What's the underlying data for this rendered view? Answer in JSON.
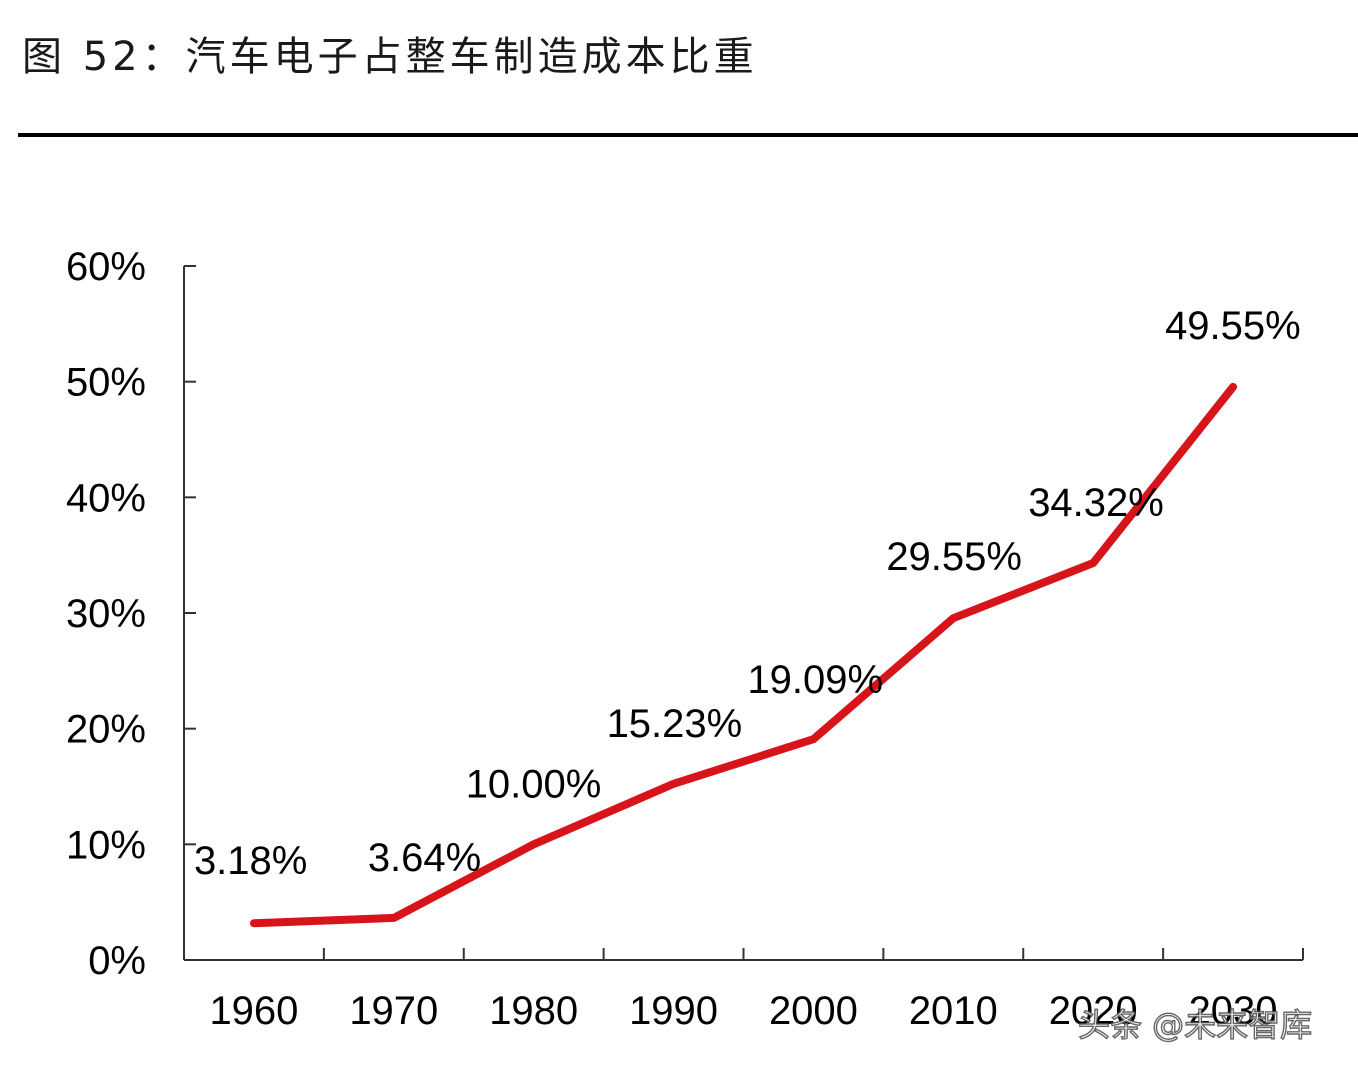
{
  "figure": {
    "title": "图 52：汽车电子占整车制造成本比重"
  },
  "chart_data": {
    "type": "line",
    "title": "",
    "xlabel": "",
    "ylabel": "",
    "categories": [
      "1960",
      "1970",
      "1980",
      "1990",
      "2000",
      "2010",
      "2020",
      "2030"
    ],
    "series": [
      {
        "name": "汽车电子占整车制造成本比重",
        "values": [
          3.18,
          3.64,
          10.0,
          15.23,
          19.09,
          29.55,
          34.32,
          49.55
        ],
        "labels": [
          "3.18%",
          "3.64%",
          "10.00%",
          "15.23%",
          "19.09%",
          "29.55%",
          "34.32%",
          "49.55%"
        ],
        "color": "#d7141a"
      }
    ],
    "yticks": [
      "0%",
      "10%",
      "20%",
      "30%",
      "40%",
      "50%",
      "60%"
    ],
    "ylim": [
      0,
      60
    ],
    "grid": false,
    "legend": "none"
  },
  "watermark": {
    "text": "头条 @未来智库"
  }
}
